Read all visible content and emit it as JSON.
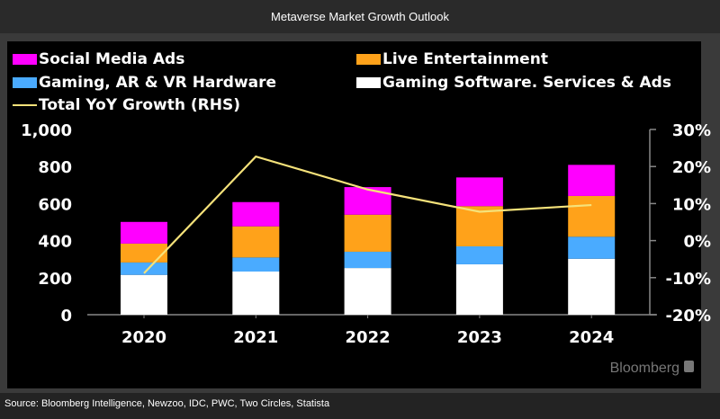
{
  "header": {
    "title": "Metaverse Market Growth Outlook"
  },
  "footer": {
    "source": "Source: Bloomberg Intelligence, Newzoo, IDC, PWC, Two Circles, Statista"
  },
  "watermark": "Bloomberg",
  "chart_data": {
    "type": "bar",
    "stacked": true,
    "categories": [
      "2020",
      "2021",
      "2022",
      "2023",
      "2024"
    ],
    "series": [
      {
        "name": "Gaming Software. Services & Ads",
        "color": "#ffffff",
        "values": [
          215,
          233,
          252,
          272,
          302
        ]
      },
      {
        "name": "Gaming, AR & VR Hardware",
        "color": "#4aabff",
        "values": [
          67,
          76,
          88,
          97,
          119
        ]
      },
      {
        "name": "Live Entertainment",
        "color": "#ffa21a",
        "values": [
          102,
          168,
          200,
          217,
          220
        ]
      },
      {
        "name": "Social Media Ads",
        "color": "#ff00ff",
        "values": [
          117,
          131,
          149,
          155,
          168
        ]
      }
    ],
    "line_series": {
      "name": "Total YoY Growth (RHS)",
      "color": "#f5e27a",
      "axis": "right",
      "values": [
        -8.8,
        22.7,
        13.8,
        7.8,
        9.6
      ]
    },
    "left_axis": {
      "ylim": [
        0,
        1000
      ],
      "ticks": [
        "0",
        "200",
        "400",
        "600",
        "800",
        "1,000"
      ]
    },
    "right_axis": {
      "ylim": [
        -20,
        30
      ],
      "ticks": [
        "-20%",
        "-10%",
        "0%",
        "10%",
        "20%",
        "30%"
      ]
    },
    "legend": {
      "placement": "top",
      "order": [
        "Social Media Ads",
        "Live Entertainment",
        "Gaming, AR & VR Hardware",
        "Gaming Software. Services & Ads",
        "Total YoY Growth (RHS)"
      ]
    },
    "grid": false
  }
}
